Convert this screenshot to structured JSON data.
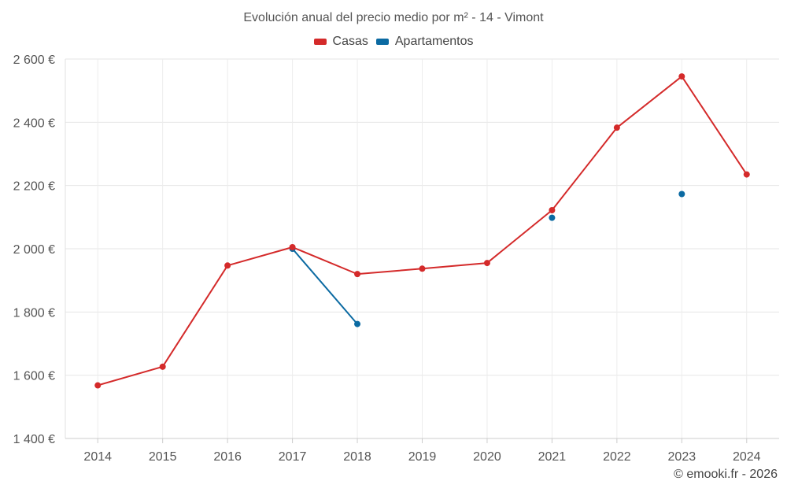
{
  "chart_data": {
    "type": "line",
    "title": "Evolución anual del precio medio por m² - 14 - Vimont",
    "xlabel": "",
    "ylabel": "",
    "categories": [
      "2014",
      "2015",
      "2016",
      "2017",
      "2018",
      "2019",
      "2020",
      "2021",
      "2022",
      "2023",
      "2024"
    ],
    "ylim": [
      1400,
      2600
    ],
    "yticks": [
      1400,
      1600,
      1800,
      2000,
      2200,
      2400,
      2600
    ],
    "ytick_labels": [
      "1 400 €",
      "1 600 €",
      "1 800 €",
      "2 000 €",
      "2 200 €",
      "2 400 €",
      "2 600 €"
    ],
    "grid": true,
    "legend_position": "top-center",
    "series": [
      {
        "name": "Casas",
        "color": "#d42a2a",
        "values": [
          1568,
          1627,
          1947,
          2005,
          1920,
          1937,
          1955,
          2122,
          2383,
          2545,
          2235
        ]
      },
      {
        "name": "Apartamentos",
        "color": "#0b6aa2",
        "values": [
          null,
          null,
          null,
          2000,
          1762,
          null,
          null,
          2098,
          null,
          2173,
          null
        ]
      }
    ]
  },
  "footer": {
    "credit": "© emooki.fr - 2026"
  }
}
